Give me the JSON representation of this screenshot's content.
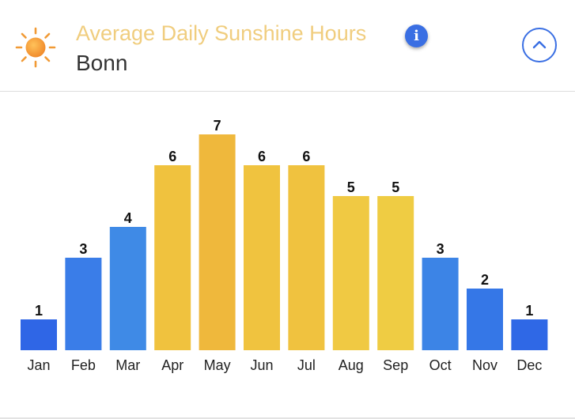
{
  "header": {
    "title": "Average Daily Sunshine Hours",
    "subtitle": "Bonn",
    "title_color": "#f0cd7e",
    "sun_icon": "sun-icon",
    "info_icon": "info-icon",
    "info_glyph": "i",
    "collapse_icon": "chevron-up-icon",
    "accent_color": "#3a6fe3"
  },
  "chart_data": {
    "type": "bar",
    "categories": [
      "Jan",
      "Feb",
      "Mar",
      "Apr",
      "May",
      "Jun",
      "Jul",
      "Aug",
      "Sep",
      "Oct",
      "Nov",
      "Dec"
    ],
    "values": [
      1,
      3,
      4,
      6,
      7,
      6,
      6,
      5,
      5,
      3,
      2,
      1
    ],
    "colors": [
      "#2f66e6",
      "#3a7de8",
      "#3f8ae6",
      "#f0c23e",
      "#efb83c",
      "#f0c33f",
      "#f0c23f",
      "#f0c943",
      "#efcc43",
      "#3c84e6",
      "#3577e7",
      "#2f68e6"
    ],
    "title": "",
    "xlabel": "",
    "ylabel": "",
    "ylim": [
      0,
      7
    ],
    "grid": false,
    "legend": "none",
    "data_labels": true
  }
}
